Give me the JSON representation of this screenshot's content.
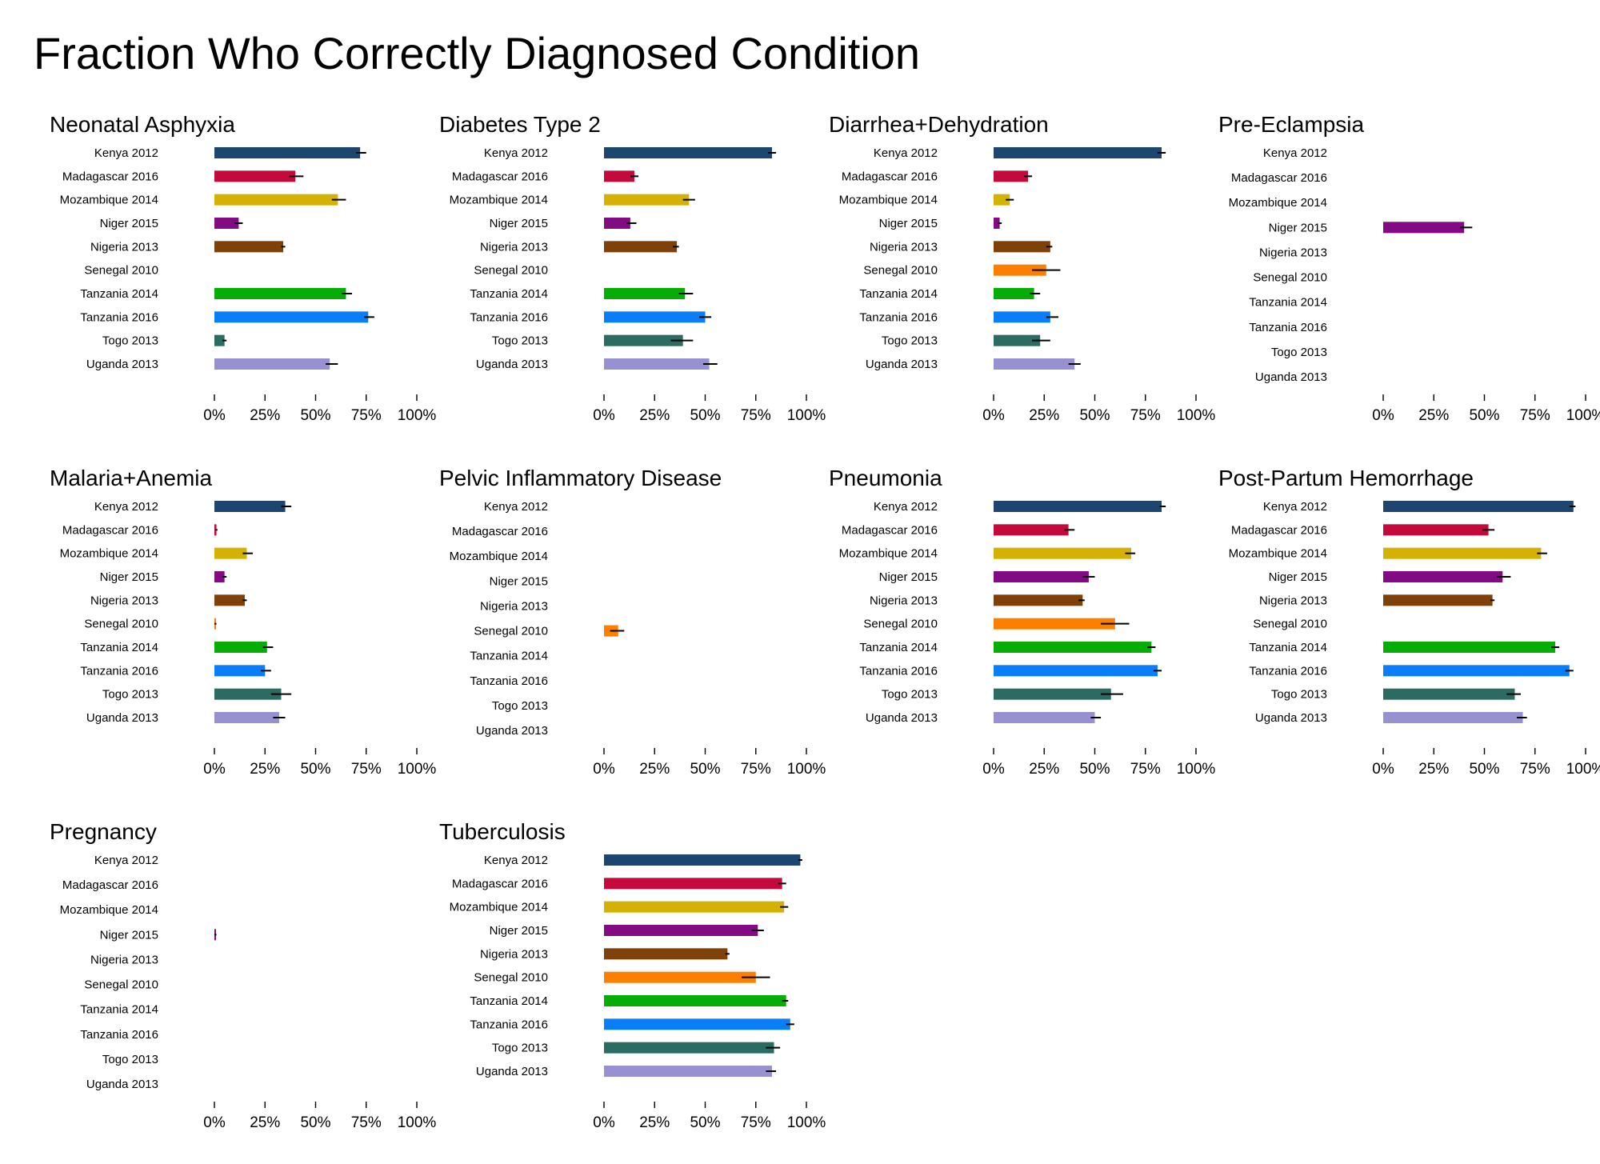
{
  "title": "Fraction Who Correctly Diagnosed Condition",
  "colors": {
    "Kenya 2012": "#1c4570",
    "Madagascar 2016": "#c40a3c",
    "Mozambique 2014": "#d4b103",
    "Niger 2015": "#820a82",
    "Nigeria 2013": "#7d4109",
    "Senegal 2010": "#fc7f00",
    "Tanzania 2014": "#06ad06",
    "Tanzania 2016": "#0a7ef6",
    "Togo 2013": "#2a6b62",
    "Uganda 2013": "#9791d2"
  },
  "chart_data": [
    {
      "type": "bar",
      "title": "Neonatal Asphyxia",
      "categories": [
        "Kenya 2012",
        "Madagascar 2016",
        "Mozambique 2014",
        "Niger 2015",
        "Nigeria 2013",
        "Senegal 2010",
        "Tanzania 2014",
        "Tanzania 2016",
        "Togo 2013",
        "Uganda 2013"
      ],
      "values": [
        0.72,
        0.4,
        0.61,
        0.12,
        0.34,
        null,
        0.65,
        0.76,
        0.05,
        0.57
      ],
      "ci_low": [
        0.7,
        0.37,
        0.58,
        0.1,
        0.33,
        null,
        0.63,
        0.74,
        0.04,
        0.55
      ],
      "ci_high": [
        0.75,
        0.44,
        0.65,
        0.14,
        0.35,
        null,
        0.68,
        0.79,
        0.06,
        0.61
      ],
      "x_ticks": [
        "0%",
        "25%",
        "50%",
        "75%",
        "100%"
      ],
      "xlim": [
        0,
        1
      ]
    },
    {
      "type": "bar",
      "title": "Diabetes Type 2",
      "categories": [
        "Kenya 2012",
        "Madagascar 2016",
        "Mozambique 2014",
        "Niger 2015",
        "Nigeria 2013",
        "Senegal 2010",
        "Tanzania 2014",
        "Tanzania 2016",
        "Togo 2013",
        "Uganda 2013"
      ],
      "values": [
        0.83,
        0.15,
        0.42,
        0.13,
        0.36,
        null,
        0.4,
        0.5,
        0.39,
        0.52
      ],
      "ci_low": [
        0.81,
        0.13,
        0.39,
        0.11,
        0.34,
        null,
        0.37,
        0.47,
        0.33,
        0.49
      ],
      "ci_high": [
        0.85,
        0.17,
        0.45,
        0.16,
        0.37,
        null,
        0.44,
        0.53,
        0.44,
        0.56
      ],
      "x_ticks": [
        "0%",
        "25%",
        "50%",
        "75%",
        "100%"
      ],
      "xlim": [
        0,
        1
      ]
    },
    {
      "type": "bar",
      "title": "Diarrhea+Dehydration",
      "categories": [
        "Kenya 2012",
        "Madagascar 2016",
        "Mozambique 2014",
        "Niger 2015",
        "Nigeria 2013",
        "Senegal 2010",
        "Tanzania 2014",
        "Tanzania 2016",
        "Togo 2013",
        "Uganda 2013"
      ],
      "values": [
        0.83,
        0.17,
        0.08,
        0.03,
        0.28,
        0.26,
        0.2,
        0.28,
        0.23,
        0.4
      ],
      "ci_low": [
        0.81,
        0.15,
        0.06,
        0.02,
        0.26,
        0.19,
        0.18,
        0.26,
        0.19,
        0.37
      ],
      "ci_high": [
        0.85,
        0.19,
        0.1,
        0.04,
        0.29,
        0.33,
        0.23,
        0.32,
        0.28,
        0.43
      ],
      "x_ticks": [
        "0%",
        "25%",
        "50%",
        "75%",
        "100%"
      ],
      "xlim": [
        0,
        1
      ]
    },
    {
      "type": "bar",
      "title": "Pre-Eclampsia",
      "categories": [
        "Kenya 2012",
        "Madagascar 2016",
        "Mozambique 2014",
        "Niger 2015",
        "Nigeria 2013",
        "Senegal 2010",
        "Tanzania 2014",
        "Tanzania 2016",
        "Togo 2013",
        "Uganda 2013"
      ],
      "values": [
        null,
        null,
        null,
        0.4,
        null,
        null,
        null,
        null,
        null,
        null
      ],
      "ci_low": [
        null,
        null,
        null,
        0.38,
        null,
        null,
        null,
        null,
        null,
        null
      ],
      "ci_high": [
        null,
        null,
        null,
        0.44,
        null,
        null,
        null,
        null,
        null,
        null
      ],
      "x_ticks": [
        "0%",
        "25%",
        "50%",
        "75%",
        "100%"
      ],
      "xlim": [
        0,
        1
      ]
    },
    {
      "type": "bar",
      "title": "Malaria+Anemia",
      "categories": [
        "Kenya 2012",
        "Madagascar 2016",
        "Mozambique 2014",
        "Niger 2015",
        "Nigeria 2013",
        "Senegal 2010",
        "Tanzania 2014",
        "Tanzania 2016",
        "Togo 2013",
        "Uganda 2013"
      ],
      "values": [
        0.35,
        0.01,
        0.16,
        0.05,
        0.15,
        0.005,
        0.26,
        0.25,
        0.33,
        0.32
      ],
      "ci_low": [
        0.33,
        0.005,
        0.14,
        0.04,
        0.14,
        0.0,
        0.24,
        0.23,
        0.28,
        0.29
      ],
      "ci_high": [
        0.38,
        0.015,
        0.19,
        0.06,
        0.16,
        0.01,
        0.29,
        0.28,
        0.38,
        0.35
      ],
      "x_ticks": [
        "0%",
        "25%",
        "50%",
        "75%",
        "100%"
      ],
      "xlim": [
        0,
        1
      ]
    },
    {
      "type": "bar",
      "title": "Pelvic Inflammatory Disease",
      "categories": [
        "Kenya 2012",
        "Madagascar 2016",
        "Mozambique 2014",
        "Niger 2015",
        "Nigeria 2013",
        "Senegal 2010",
        "Tanzania 2014",
        "Tanzania 2016",
        "Togo 2013",
        "Uganda 2013"
      ],
      "values": [
        null,
        null,
        null,
        null,
        null,
        0.07,
        null,
        null,
        null,
        null
      ],
      "ci_low": [
        null,
        null,
        null,
        null,
        null,
        0.03,
        null,
        null,
        null,
        null
      ],
      "ci_high": [
        null,
        null,
        null,
        null,
        null,
        0.1,
        null,
        null,
        null,
        null
      ],
      "x_ticks": [
        "0%",
        "25%",
        "50%",
        "75%",
        "100%"
      ],
      "xlim": [
        0,
        1
      ]
    },
    {
      "type": "bar",
      "title": "Pneumonia",
      "categories": [
        "Kenya 2012",
        "Madagascar 2016",
        "Mozambique 2014",
        "Niger 2015",
        "Nigeria 2013",
        "Senegal 2010",
        "Tanzania 2014",
        "Tanzania 2016",
        "Togo 2013",
        "Uganda 2013"
      ],
      "values": [
        0.83,
        0.37,
        0.68,
        0.47,
        0.44,
        0.6,
        0.78,
        0.81,
        0.58,
        0.5
      ],
      "ci_low": [
        0.82,
        0.35,
        0.65,
        0.44,
        0.42,
        0.53,
        0.76,
        0.79,
        0.53,
        0.48
      ],
      "ci_high": [
        0.85,
        0.4,
        0.7,
        0.5,
        0.45,
        0.67,
        0.8,
        0.83,
        0.64,
        0.53
      ],
      "x_ticks": [
        "0%",
        "25%",
        "50%",
        "75%",
        "100%"
      ],
      "xlim": [
        0,
        1
      ]
    },
    {
      "type": "bar",
      "title": "Post-Partum Hemorrhage",
      "categories": [
        "Kenya 2012",
        "Madagascar 2016",
        "Mozambique 2014",
        "Niger 2015",
        "Nigeria 2013",
        "Senegal 2010",
        "Tanzania 2014",
        "Tanzania 2016",
        "Togo 2013",
        "Uganda 2013"
      ],
      "values": [
        0.94,
        0.52,
        0.78,
        0.59,
        0.54,
        null,
        0.85,
        0.92,
        0.65,
        0.69
      ],
      "ci_low": [
        0.92,
        0.49,
        0.76,
        0.56,
        0.53,
        null,
        0.83,
        0.9,
        0.61,
        0.66
      ],
      "ci_high": [
        0.95,
        0.55,
        0.81,
        0.63,
        0.55,
        null,
        0.87,
        0.94,
        0.68,
        0.71
      ],
      "x_ticks": [
        "0%",
        "25%",
        "50%",
        "75%",
        "100%"
      ],
      "xlim": [
        0,
        1
      ]
    },
    {
      "type": "bar",
      "title": "Pregnancy",
      "categories": [
        "Kenya 2012",
        "Madagascar 2016",
        "Mozambique 2014",
        "Niger 2015",
        "Nigeria 2013",
        "Senegal 2010",
        "Tanzania 2014",
        "Tanzania 2016",
        "Togo 2013",
        "Uganda 2013"
      ],
      "values": [
        null,
        null,
        null,
        0.005,
        null,
        null,
        null,
        null,
        null,
        null
      ],
      "ci_low": [
        null,
        null,
        null,
        0.0,
        null,
        null,
        null,
        null,
        null,
        null
      ],
      "ci_high": [
        null,
        null,
        null,
        0.01,
        null,
        null,
        null,
        null,
        null,
        null
      ],
      "x_ticks": [
        "0%",
        "25%",
        "50%",
        "75%",
        "100%"
      ],
      "xlim": [
        0,
        1
      ]
    },
    {
      "type": "bar",
      "title": "Tuberculosis",
      "categories": [
        "Kenya 2012",
        "Madagascar 2016",
        "Mozambique 2014",
        "Niger 2015",
        "Nigeria 2013",
        "Senegal 2010",
        "Tanzania 2014",
        "Tanzania 2016",
        "Togo 2013",
        "Uganda 2013"
      ],
      "values": [
        0.97,
        0.88,
        0.89,
        0.76,
        0.61,
        0.75,
        0.9,
        0.92,
        0.84,
        0.83
      ],
      "ci_low": [
        0.96,
        0.86,
        0.87,
        0.73,
        0.6,
        0.68,
        0.88,
        0.9,
        0.8,
        0.8
      ],
      "ci_high": [
        0.98,
        0.9,
        0.91,
        0.79,
        0.62,
        0.82,
        0.91,
        0.94,
        0.87,
        0.85
      ],
      "x_ticks": [
        "0%",
        "25%",
        "50%",
        "75%",
        "100%"
      ],
      "xlim": [
        0,
        1
      ]
    }
  ]
}
